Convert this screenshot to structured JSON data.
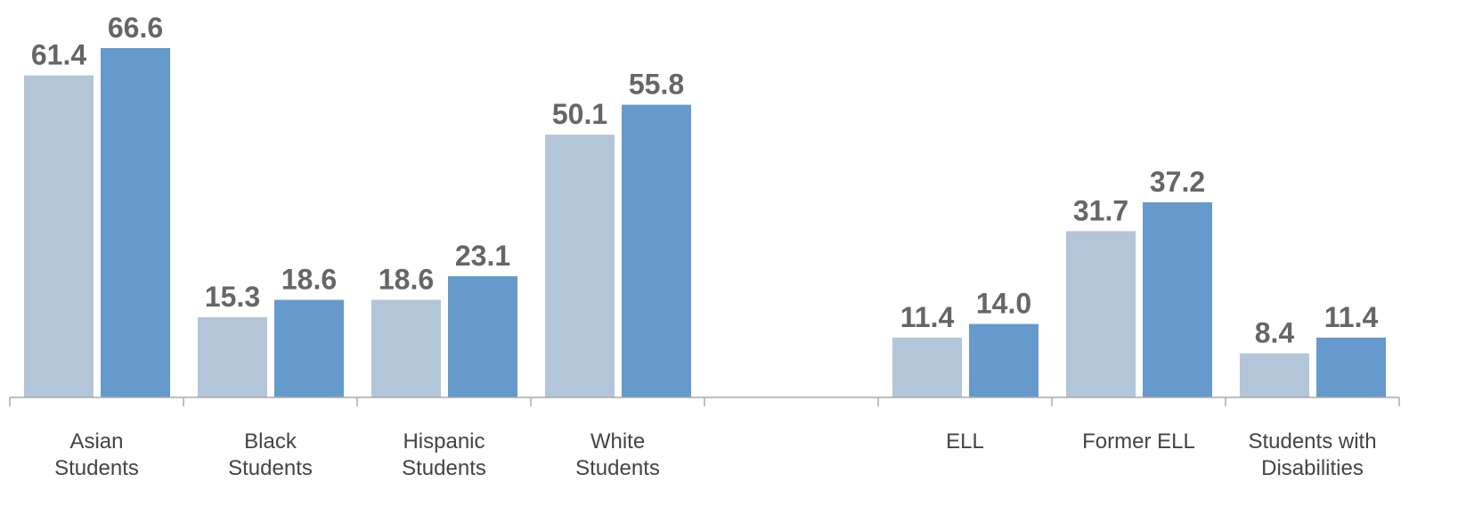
{
  "chart_data": {
    "type": "bar",
    "categories": [
      [
        "Asian",
        "Students"
      ],
      [
        "Black",
        "Students"
      ],
      [
        "Hispanic",
        "Students"
      ],
      [
        "White",
        "Students"
      ],
      [],
      [
        "ELL"
      ],
      [
        "Former ELL"
      ],
      [
        "Students with",
        "Disabilities"
      ]
    ],
    "series": [
      {
        "color": "#b3c5d9",
        "values": [
          61.4,
          15.3,
          18.6,
          50.1,
          null,
          11.4,
          31.7,
          8.4
        ]
      },
      {
        "color": "#6699cc",
        "values": [
          66.6,
          18.6,
          23.1,
          55.8,
          null,
          14.0,
          37.2,
          11.4
        ]
      }
    ],
    "value_labels": [
      [
        "61.4",
        "15.3",
        "18.6",
        "50.1",
        null,
        "11.4",
        "31.7",
        "8.4"
      ],
      [
        "66.6",
        "18.6",
        "23.1",
        "55.8",
        null,
        "14.0",
        "37.2",
        "11.4"
      ]
    ],
    "ylim": [
      0,
      66.6
    ],
    "grid": false,
    "legend": "none",
    "label_color": "#666666",
    "axis_color": "#aaaaaa",
    "title": "",
    "xlabel": "",
    "ylabel": ""
  }
}
